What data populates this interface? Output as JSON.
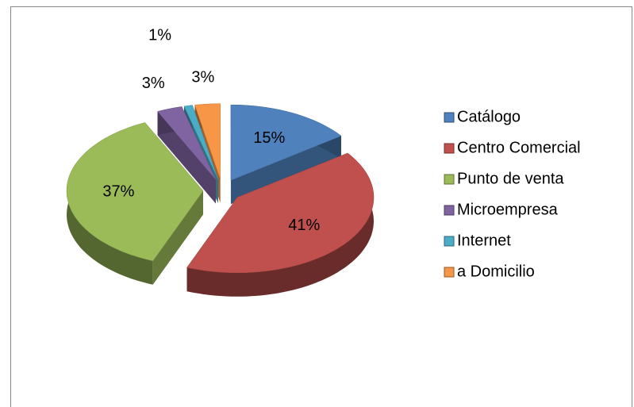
{
  "chart_data": {
    "type": "pie",
    "categories": [
      "Catálogo",
      "Centro Comercial",
      "Punto de venta",
      "Microempresa",
      "Internet",
      "a Domicilio"
    ],
    "values": [
      15,
      41,
      37,
      3,
      1,
      3
    ],
    "value_labels": [
      "15%",
      "41%",
      "37%",
      "3%",
      "1%",
      "3%"
    ],
    "colors": [
      "#4f81bd",
      "#c0504d",
      "#9bbb59",
      "#8064a2",
      "#4bacc6",
      "#f79646"
    ],
    "legend": "right"
  }
}
